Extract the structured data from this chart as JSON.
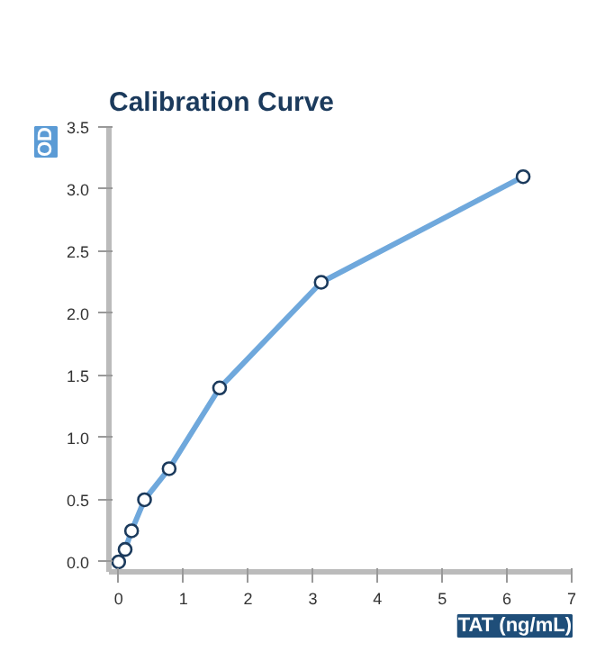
{
  "chart_data": {
    "type": "line",
    "title": "Calibration Curve",
    "xlabel": "TAT (ng/mL)",
    "ylabel": "OD",
    "xlim": [
      -0.15,
      7
    ],
    "ylim": [
      -0.08,
      3.5
    ],
    "xticks": [
      0,
      1,
      2,
      3,
      4,
      5,
      6,
      7
    ],
    "yticks": [
      {
        "value": 0,
        "label": "0.0"
      },
      {
        "value": 0.5,
        "label": "0.5"
      },
      {
        "value": 1,
        "label": "1.0"
      },
      {
        "value": 1.5,
        "label": "1.5"
      },
      {
        "value": 2,
        "label": "2.0"
      },
      {
        "value": 2.5,
        "label": "2.5"
      },
      {
        "value": 3,
        "label": "3.0"
      },
      {
        "value": 3.5,
        "label": "3.5"
      }
    ],
    "x": [
      0,
      0.1,
      0.2,
      0.4,
      0.78,
      1.56,
      3.13,
      6.25
    ],
    "series": [
      {
        "color": "#6fa8dc",
        "values": [
          0,
          0.1,
          0.25,
          0.5,
          0.75,
          1.4,
          2.25,
          3.1
        ]
      }
    ],
    "marker": "circle",
    "line_style": "solid",
    "grid": false
  }
}
